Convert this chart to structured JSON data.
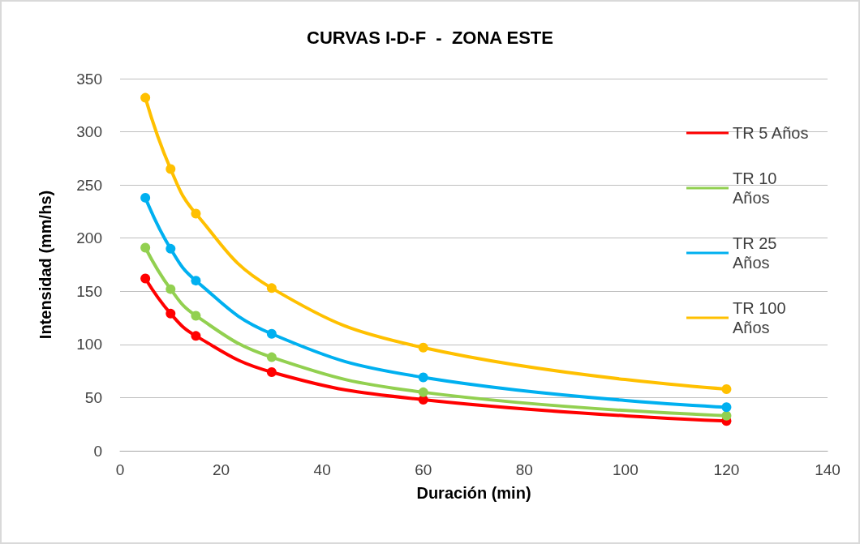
{
  "chart_data": {
    "type": "line",
    "title": "CURVAS I-D-F  -  ZONA ESTE",
    "xlabel": "Duración (min)",
    "ylabel": "Intensidad (mm/hs)",
    "x": [
      5,
      10,
      15,
      30,
      60,
      120
    ],
    "series": [
      {
        "name": "TR 5 Años",
        "color": "#ff0000",
        "values": [
          162,
          129,
          108,
          74,
          48,
          28
        ]
      },
      {
        "name": "TR 10 Años",
        "color": "#92d050",
        "values": [
          191,
          152,
          127,
          88,
          55,
          33
        ]
      },
      {
        "name": "TR 25 Años",
        "color": "#00b0f0",
        "values": [
          238,
          190,
          160,
          110,
          69,
          41
        ]
      },
      {
        "name": "TR 100 Años",
        "color": "#ffc000",
        "values": [
          332,
          265,
          223,
          153,
          97,
          58
        ]
      }
    ],
    "xlim": [
      0,
      140
    ],
    "xticks": [
      0,
      20,
      40,
      60,
      80,
      100,
      120,
      140
    ],
    "ylim": [
      0,
      350
    ],
    "yticks": [
      0,
      50,
      100,
      150,
      200,
      250,
      300,
      350
    ],
    "grid": "y",
    "legend": "right",
    "marker": "circle",
    "line_style": "solid"
  }
}
